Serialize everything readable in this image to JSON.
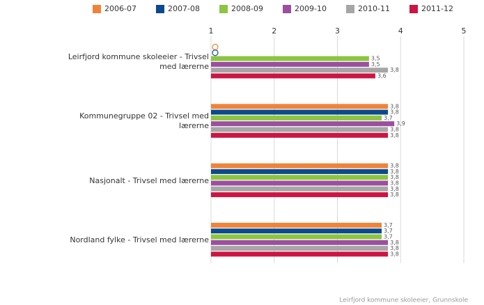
{
  "chart_data": {
    "type": "hbar",
    "categories": [
      "Leirfjord kommune skoleeier - Trivsel med lærerne",
      "Kommunegruppe 02 - Trivsel med lærerne",
      "Nasjonalt - Trivsel med lærerne",
      "Nordland fylke - Trivsel med lærerne"
    ],
    "series": [
      {
        "name": "2006-07",
        "color": "#f0833a",
        "values": [
          null,
          3.8,
          3.8,
          3.7
        ],
        "value_labels": [
          null,
          "3,8",
          "3,8",
          "3,7"
        ]
      },
      {
        "name": "2007-08",
        "color": "#0b4a8c",
        "values": [
          null,
          3.8,
          3.8,
          3.7
        ],
        "value_labels": [
          null,
          "3,8",
          "3,8",
          "3,7"
        ]
      },
      {
        "name": "2008-09",
        "color": "#8cc540",
        "values": [
          3.5,
          3.7,
          3.8,
          3.7
        ],
        "value_labels": [
          "3,5",
          "3,7",
          "3,8",
          "3,7"
        ]
      },
      {
        "name": "2009-10",
        "color": "#9b4f9e",
        "values": [
          3.5,
          3.9,
          3.8,
          3.8
        ],
        "value_labels": [
          "3,5",
          "3,9",
          "3,8",
          "3,8"
        ]
      },
      {
        "name": "2010-11",
        "color": "#a6a6a6",
        "values": [
          3.8,
          3.8,
          3.8,
          3.8
        ],
        "value_labels": [
          "3,8",
          "3,8",
          "3,8",
          "3,8"
        ]
      },
      {
        "name": "2011-12",
        "color": "#cc1543",
        "values": [
          3.6,
          3.8,
          3.8,
          3.8
        ],
        "value_labels": [
          "3,6",
          "3,8",
          "3,8",
          "3,8"
        ]
      }
    ],
    "xlim": [
      1,
      5
    ],
    "xticks": [
      1,
      2,
      3,
      4,
      5
    ],
    "grid": true,
    "source": "Leirfjord kommune skoleeier, Grunnskole"
  }
}
